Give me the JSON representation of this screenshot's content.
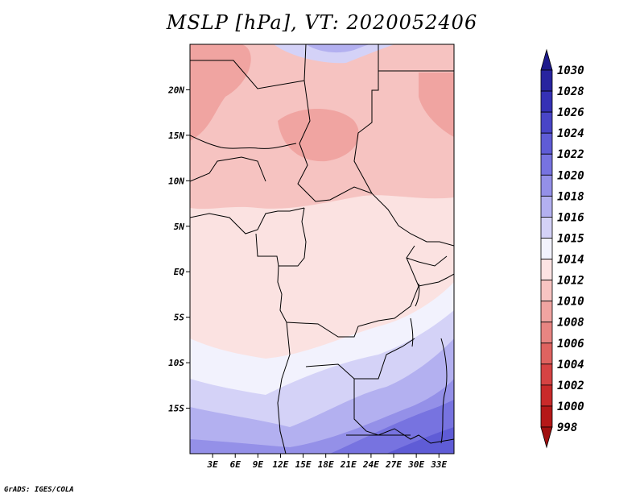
{
  "title": "MSLP [hPa], VT: 2020052406",
  "credit": "GrADS: IGES/COLA",
  "map": {
    "lat_labels": [
      "20N",
      "15N",
      "10N",
      "5N",
      "EQ",
      "5S",
      "10S",
      "15S"
    ],
    "lat_values": [
      20,
      15,
      10,
      5,
      0,
      -5,
      -10,
      -15
    ],
    "lon_labels": [
      "3E",
      "6E",
      "9E",
      "12E",
      "15E",
      "18E",
      "21E",
      "24E",
      "27E",
      "30E",
      "33E"
    ],
    "lon_values": [
      3,
      6,
      9,
      12,
      15,
      18,
      21,
      24,
      27,
      30,
      33
    ],
    "lat_range": [
      -20,
      25
    ],
    "lon_range": [
      0,
      35
    ]
  },
  "colorbar": {
    "labels": [
      "1030",
      "1028",
      "1026",
      "1024",
      "1022",
      "1020",
      "1018",
      "1016",
      "1015",
      "1014",
      "1012",
      "1010",
      "1008",
      "1006",
      "1004",
      "1002",
      "1000",
      "998"
    ],
    "colors": [
      "#1e1a8c",
      "#28249f",
      "#3531b5",
      "#4945c7",
      "#5f5cd6",
      "#7773e0",
      "#9490e8",
      "#b3b0f0",
      "#d4d2f7",
      "#f2f2fd",
      "#fce3e3",
      "#f7c4c2",
      "#f0a4a1",
      "#e88582",
      "#df6360",
      "#d64343",
      "#c92a2a",
      "#b51818",
      "#a01010"
    ]
  }
}
